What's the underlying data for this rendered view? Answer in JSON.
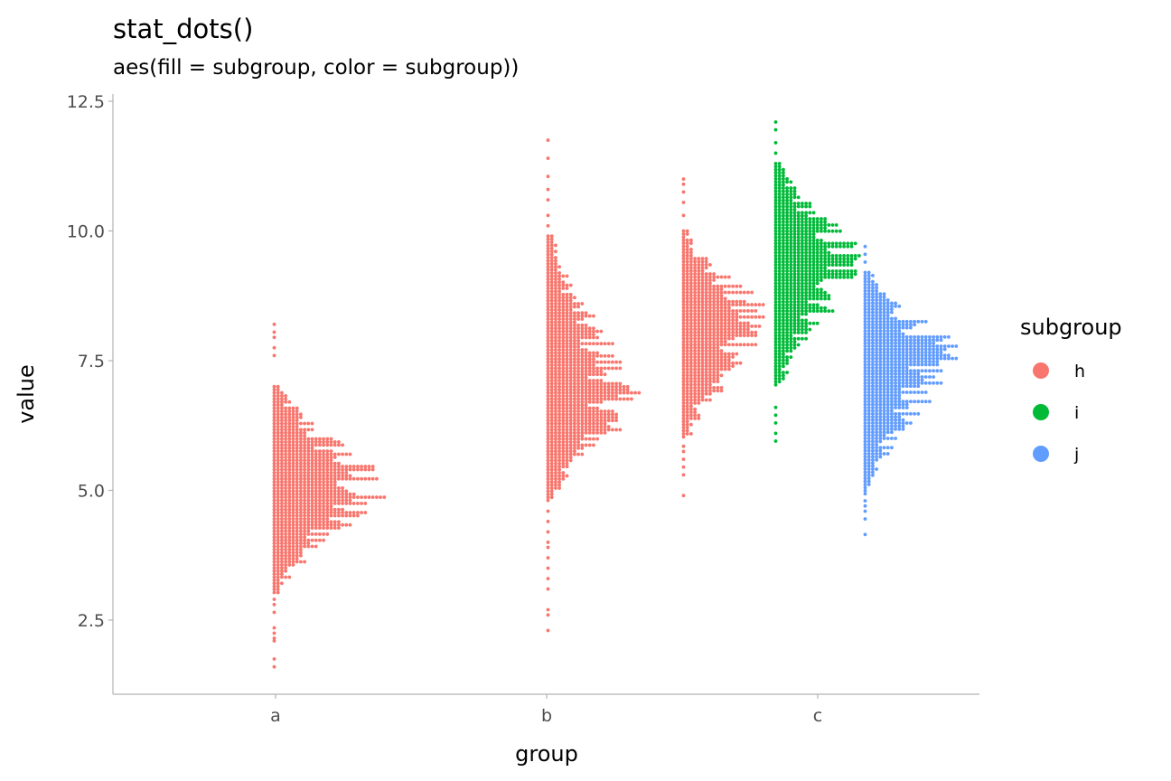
{
  "chart_data": {
    "type": "scatter",
    "subtype": "dotplot",
    "title": "stat_dots()",
    "subtitle": "aes(fill = subgroup, color = subgroup))",
    "xlabel": "group",
    "ylabel": "value",
    "categories": [
      "a",
      "b",
      "c"
    ],
    "ylim": [
      1.1,
      12.75
    ],
    "yticks": [
      2.5,
      5.0,
      7.5,
      10.0,
      12.5
    ],
    "ytick_labels": [
      "2.5",
      "5.0",
      "7.5",
      "10.0",
      "12.5"
    ],
    "grid": false,
    "legend": {
      "title": "subgroup",
      "position": "right",
      "entries": [
        {
          "label": "h",
          "color": "#F8766D"
        },
        {
          "label": "i",
          "color": "#00BA38"
        },
        {
          "label": "j",
          "color": "#619CFF"
        }
      ]
    },
    "series": [
      {
        "group": "a",
        "subgroup": "h",
        "color": "#F8766D",
        "dodge": 0,
        "baseline_x": 0.995,
        "mode": 5.1,
        "peak_count": 25,
        "min": 1.6,
        "max": 8.2,
        "range_lo": 3.0,
        "range_hi": 7.0,
        "tail_values": [
          1.6,
          1.75,
          2.1,
          2.15,
          2.25,
          2.35,
          2.65,
          2.8,
          2.9,
          7.6,
          7.75,
          7.95,
          8.05,
          8.2
        ]
      },
      {
        "group": "b",
        "subgroup": "h",
        "color": "#F8766D",
        "dodge": -1,
        "baseline_x": 2.005,
        "mode": 6.7,
        "peak_count": 20,
        "min": 2.3,
        "max": 11.75,
        "range_lo": 4.8,
        "range_hi": 9.9,
        "tail_values": [
          2.3,
          2.6,
          2.7,
          3.1,
          3.3,
          3.5,
          3.7,
          3.9,
          4.0,
          4.2,
          4.4,
          4.6,
          10.1,
          10.3,
          10.6,
          10.8,
          11.05,
          11.4,
          11.75
        ]
      },
      {
        "group": "c",
        "subgroup": "h",
        "color": "#F8766D",
        "dodge": -1,
        "baseline_x": 2.505,
        "mode": 8.2,
        "peak_count": 20,
        "min": 4.9,
        "max": 11.0,
        "range_lo": 6.0,
        "range_hi": 10.0,
        "tail_values": [
          4.9,
          5.3,
          5.45,
          5.6,
          5.75,
          5.85,
          10.3,
          10.55,
          10.75,
          10.9,
          11.0
        ]
      },
      {
        "group": "c",
        "subgroup": "i",
        "color": "#00BA38",
        "dodge": 0,
        "baseline_x": 2.845,
        "mode": 9.4,
        "peak_count": 20,
        "min": 5.95,
        "max": 12.1,
        "range_lo": 7.0,
        "range_hi": 11.3,
        "tail_values": [
          5.95,
          6.1,
          6.3,
          6.45,
          6.6,
          11.5,
          11.7,
          11.95,
          12.1
        ]
      },
      {
        "group": "c",
        "subgroup": "j",
        "color": "#619CFF",
        "dodge": 1,
        "baseline_x": 3.175,
        "mode": 7.7,
        "peak_count": 20,
        "min": 4.15,
        "max": 9.7,
        "range_lo": 4.9,
        "range_hi": 9.2,
        "tail_values": [
          4.15,
          4.45,
          4.6,
          4.7,
          4.8,
          9.4,
          9.55,
          9.7
        ]
      }
    ]
  }
}
